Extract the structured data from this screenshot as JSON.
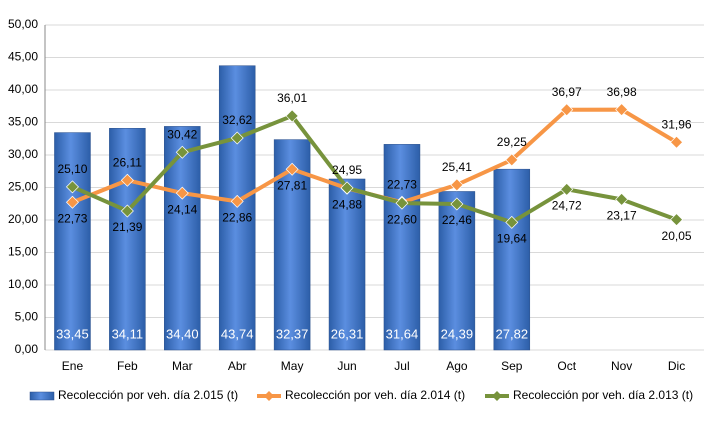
{
  "chart_data": {
    "type": "bar-line",
    "categories": [
      "Ene",
      "Feb",
      "Mar",
      "Abr",
      "May",
      "Jun",
      "Jul",
      "Ago",
      "Sep",
      "Oct",
      "Nov",
      "Dic"
    ],
    "series": [
      {
        "name": "Recolección por veh. día 2.015 (t)",
        "type": "bar",
        "color": "#3c72c4",
        "values": [
          33.45,
          34.11,
          34.4,
          43.74,
          32.37,
          26.31,
          31.64,
          24.39,
          27.82,
          null,
          null,
          null
        ],
        "value_labels": [
          "33,45",
          "34,11",
          "34,40",
          "43,74",
          "32,37",
          "26,31",
          "31,64",
          "24,39",
          "27,82",
          null,
          null,
          null
        ]
      },
      {
        "name": "Recolección por veh. día 2.014 (t)",
        "type": "line",
        "color": "#f79646",
        "values": [
          22.73,
          26.11,
          24.14,
          22.86,
          27.81,
          24.88,
          22.73,
          25.41,
          29.25,
          36.97,
          36.98,
          31.96
        ],
        "value_labels": [
          "22,73",
          "26,11",
          "24,14",
          "22,86",
          "27,81",
          "24,88",
          "22,73",
          "25,41",
          "29,25",
          "36,97",
          "36,98",
          "31,96"
        ]
      },
      {
        "name": "Recolección por veh. día 2.013 (t)",
        "type": "line",
        "color": "#77933c",
        "values": [
          25.1,
          21.39,
          30.42,
          32.62,
          36.01,
          24.95,
          22.6,
          22.46,
          19.64,
          24.72,
          23.17,
          20.05
        ],
        "value_labels": [
          "25,10",
          "21,39",
          "30,42",
          "32,62",
          "36,01",
          "24,95",
          "22,60",
          "22,46",
          "19,64",
          "24,72",
          "23,17",
          "20,05"
        ]
      }
    ],
    "ylim": [
      0,
      50
    ],
    "yticks": [
      {
        "value": 0,
        "label": "0,00"
      },
      {
        "value": 5,
        "label": "5,00"
      },
      {
        "value": 10,
        "label": "10,00"
      },
      {
        "value": 15,
        "label": "15,00"
      },
      {
        "value": 20,
        "label": "20,00"
      },
      {
        "value": 25,
        "label": "25,00"
      },
      {
        "value": 30,
        "label": "30,00"
      },
      {
        "value": 35,
        "label": "35,00"
      },
      {
        "value": 40,
        "label": "40,00"
      },
      {
        "value": 45,
        "label": "45,00"
      },
      {
        "value": 50,
        "label": "50,00"
      }
    ],
    "grid": true,
    "legend": "bottom"
  }
}
